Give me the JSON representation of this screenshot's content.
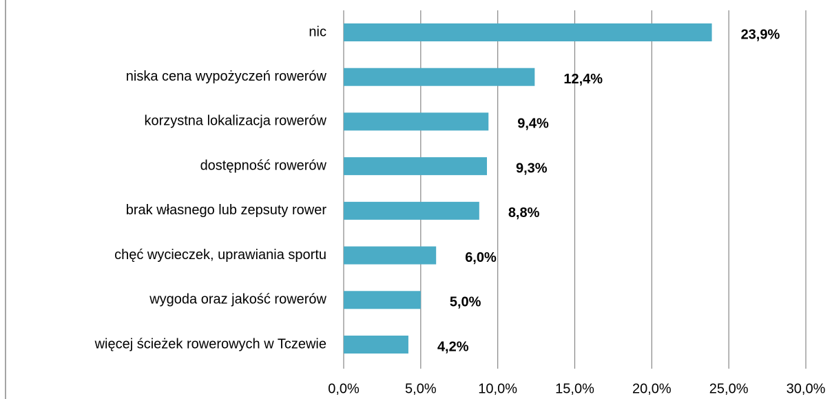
{
  "chart_data": {
    "type": "bar",
    "orientation": "horizontal",
    "categories": [
      "nic",
      "niska cena wypożyczeń rowerów",
      "korzystna lokalizacja rowerów",
      "dostępność rowerów",
      "brak własnego lub zepsuty rower",
      "chęć wycieczek, uprawiania sportu",
      "wygoda oraz jakość rowerów",
      "więcej ścieżek rowerowych w Tczewie"
    ],
    "values": [
      23.9,
      12.4,
      9.4,
      9.3,
      8.8,
      6.0,
      5.0,
      4.2
    ],
    "value_labels": [
      "23,9%",
      "12,4%",
      "9,4%",
      "9,3%",
      "8,8%",
      "6,0%",
      "5,0%",
      "4,2%"
    ],
    "color": "#4bacc6",
    "xlim": [
      0,
      30
    ],
    "xticks": [
      {
        "value": 0,
        "label": "0,0%"
      },
      {
        "value": 5,
        "label": "5,0%"
      },
      {
        "value": 10,
        "label": "10,0%"
      },
      {
        "value": 15,
        "label": "15,0%"
      },
      {
        "value": 20,
        "label": "20,0%"
      },
      {
        "value": 25,
        "label": "25,0%"
      },
      {
        "value": 30,
        "label": "30,0%"
      }
    ],
    "grid": true
  }
}
